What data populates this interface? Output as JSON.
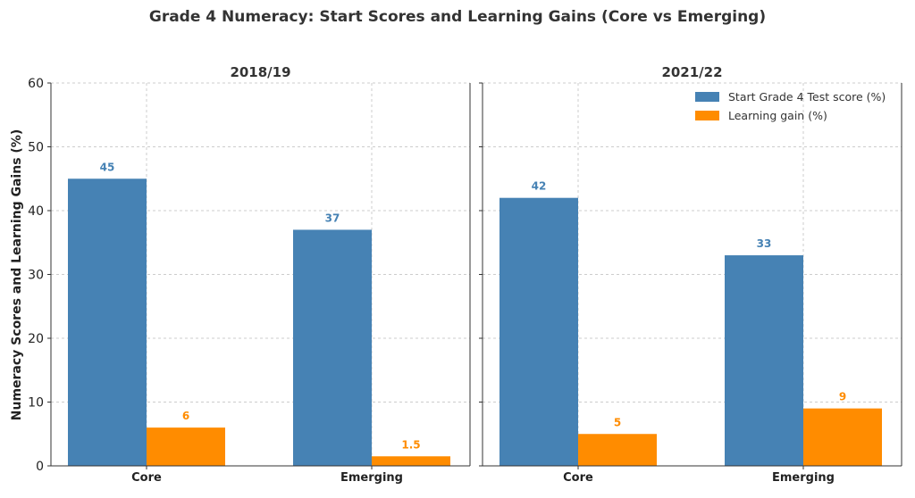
{
  "chart_data": {
    "type": "bar",
    "title": "Grade 4 Numeracy: Start Scores and Learning Gains (Core vs Emerging)",
    "ylabel": "Numeracy Scores and Learning Gains (%)",
    "ylim": [
      0,
      60
    ],
    "yticks": [
      0,
      10,
      20,
      30,
      40,
      50,
      60
    ],
    "grid": true,
    "legend_position": "top-right",
    "categories": [
      "Core",
      "Emerging"
    ],
    "legend": [
      {
        "name": "Start Grade 4 Test score (%)",
        "color": "#4682b4"
      },
      {
        "name": "Learning gain (%)",
        "color": "#ff8c00"
      }
    ],
    "panels": [
      {
        "subtitle": "2018/19",
        "series": [
          {
            "name": "Start Grade 4 Test score (%)",
            "values": [
              45,
              37
            ],
            "labels": [
              "45",
              "37"
            ],
            "color": "#4682b4"
          },
          {
            "name": "Learning gain (%)",
            "values": [
              6,
              1.5
            ],
            "labels": [
              "6",
              "1.5"
            ],
            "color": "#ff8c00"
          }
        ]
      },
      {
        "subtitle": "2021/22",
        "series": [
          {
            "name": "Start Grade 4 Test score (%)",
            "values": [
              42,
              33
            ],
            "labels": [
              "42",
              "33"
            ],
            "color": "#4682b4"
          },
          {
            "name": "Learning gain (%)",
            "values": [
              5,
              9
            ],
            "labels": [
              "5",
              "9"
            ],
            "color": "#ff8c00"
          }
        ]
      }
    ]
  }
}
